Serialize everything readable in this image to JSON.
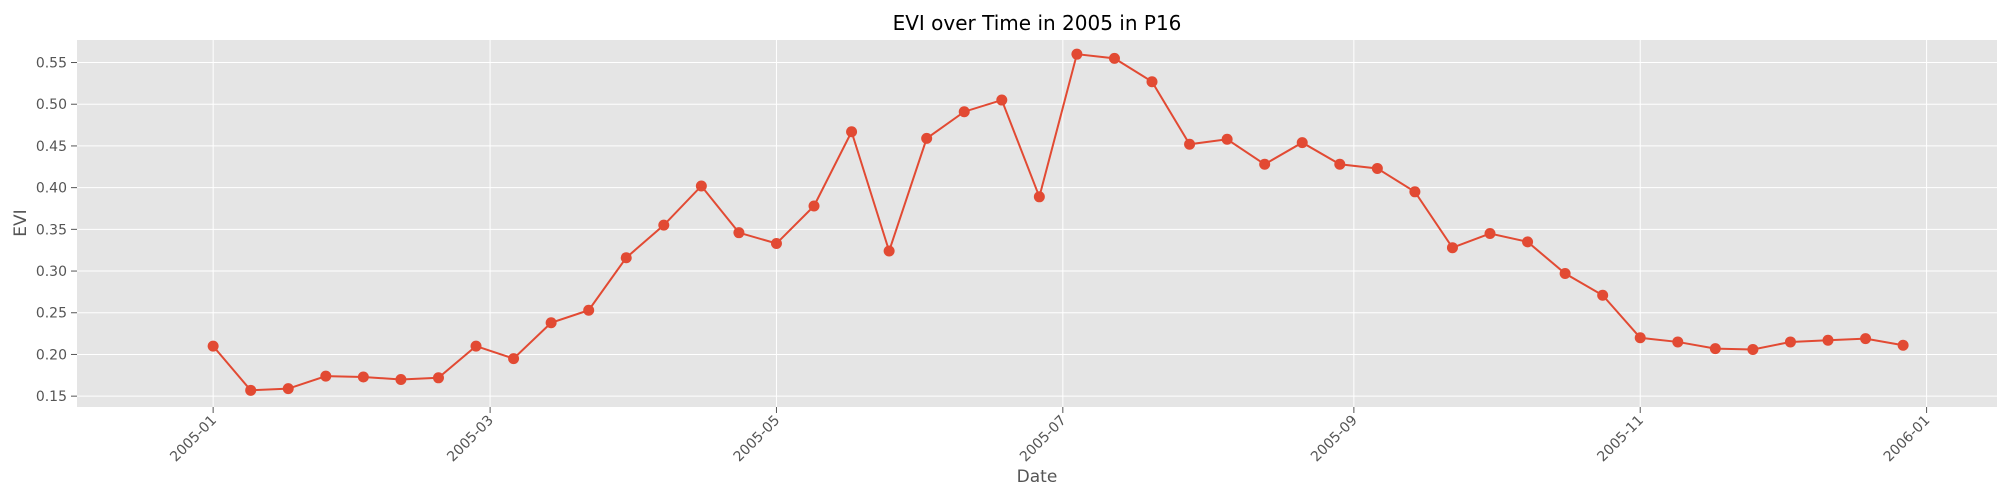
{
  "chart_data": {
    "type": "line",
    "title": "EVI over Time in 2005 in P16",
    "xlabel": "Date",
    "ylabel": "EVI",
    "x_ticks": [
      "2005-01",
      "2005-03",
      "2005-05",
      "2005-07",
      "2005-09",
      "2005-11",
      "2006-01"
    ],
    "x_tick_dates": [
      "2005-01-01",
      "2005-03-01",
      "2005-05-01",
      "2005-07-01",
      "2005-09-01",
      "2005-11-01",
      "2006-01-01"
    ],
    "y_ticks": [
      "0.15",
      "0.20",
      "0.25",
      "0.30",
      "0.35",
      "0.40",
      "0.45",
      "0.50",
      "0.55"
    ],
    "xlim": [
      "2004-12-03",
      "2006-01-16"
    ],
    "ylim": [
      0.137,
      0.577
    ],
    "grid": true,
    "background_color": "#e5e5e5",
    "grid_color": "#ffffff",
    "line_color": "#e24a33",
    "series": [
      {
        "x": [
          "2005-01-01",
          "2005-01-09",
          "2005-01-17",
          "2005-01-25",
          "2005-02-02",
          "2005-02-10",
          "2005-02-18",
          "2005-02-26",
          "2005-03-06",
          "2005-03-14",
          "2005-03-22",
          "2005-03-30",
          "2005-04-07",
          "2005-04-15",
          "2005-04-23",
          "2005-05-01",
          "2005-05-09",
          "2005-05-17",
          "2005-05-25",
          "2005-06-02",
          "2005-06-10",
          "2005-06-18",
          "2005-06-26",
          "2005-07-04",
          "2005-07-12",
          "2005-07-20",
          "2005-07-28",
          "2005-08-05",
          "2005-08-13",
          "2005-08-21",
          "2005-08-29",
          "2005-09-06",
          "2005-09-14",
          "2005-09-22",
          "2005-09-30",
          "2005-10-08",
          "2005-10-16",
          "2005-10-24",
          "2005-11-01",
          "2005-11-09",
          "2005-11-17",
          "2005-11-25",
          "2005-12-03",
          "2005-12-11",
          "2005-12-19",
          "2005-12-27"
        ],
        "y": [
          0.21,
          0.157,
          0.159,
          0.174,
          0.173,
          0.17,
          0.172,
          0.21,
          0.195,
          0.238,
          0.253,
          0.316,
          0.355,
          0.402,
          0.346,
          0.333,
          0.378,
          0.467,
          0.324,
          0.459,
          0.491,
          0.505,
          0.389,
          0.56,
          0.555,
          0.527,
          0.452,
          0.458,
          0.428,
          0.454,
          0.428,
          0.423,
          0.395,
          0.328,
          0.345,
          0.335,
          0.297,
          0.271,
          0.22,
          0.215,
          0.207,
          0.206,
          0.215,
          0.217,
          0.219,
          0.211
        ]
      }
    ]
  }
}
